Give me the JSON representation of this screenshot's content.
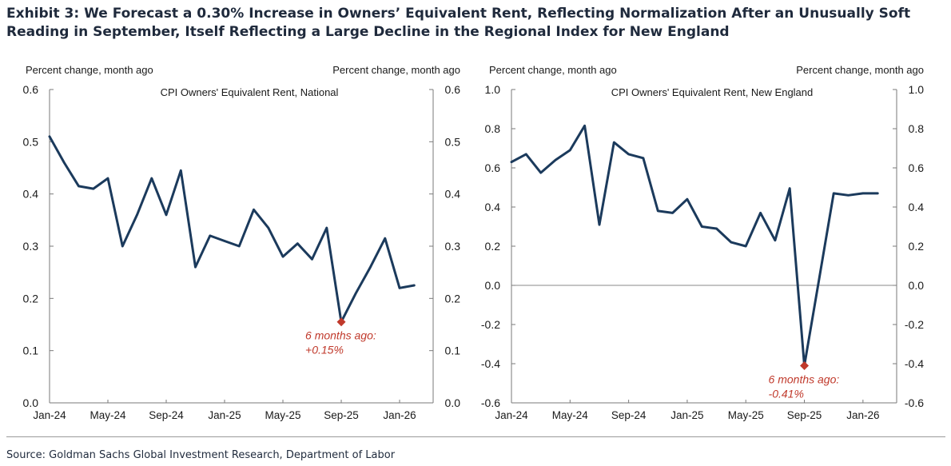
{
  "title": "Exhibit 3: We Forecast a 0.30% Increase in Owners’ Equivalent Rent, Reflecting Normalization After an Unusually Soft Reading in September, Itself Reflecting a Large Decline in the Regional Index for New England",
  "source": "Source: Goldman Sachs Global Investment Research, Department of Labor",
  "colors": {
    "line": "#1b3a5c",
    "marker": "#c0392b",
    "annotation": "#c0392b"
  },
  "chart_data": [
    {
      "type": "line",
      "title": "CPI Owners' Equivalent Rent, National",
      "ylabel_left": "Percent change, month ago",
      "ylabel_right": "Percent change, month ago",
      "ylim": [
        0.0,
        0.6
      ],
      "yticks": [
        "0.0",
        "0.1",
        "0.2",
        "0.3",
        "0.4",
        "0.5",
        "0.6"
      ],
      "xlim": [
        0,
        26.3
      ],
      "xticks": [
        {
          "i": 0,
          "label": "Jan-24"
        },
        {
          "i": 4,
          "label": "May-24"
        },
        {
          "i": 8,
          "label": "Sep-24"
        },
        {
          "i": 12,
          "label": "Jan-25"
        },
        {
          "i": 16,
          "label": "May-25"
        },
        {
          "i": 20,
          "label": "Sep-25"
        },
        {
          "i": 24,
          "label": "Jan-26"
        }
      ],
      "series": [
        {
          "name": "CPI Owners' Equivalent Rent, National",
          "x": [
            0,
            1,
            2,
            3,
            4,
            5,
            6,
            7,
            8,
            9,
            10,
            11,
            12,
            13,
            14,
            15,
            16,
            17,
            18,
            19,
            20,
            21,
            22,
            23,
            24,
            25
          ],
          "values": [
            0.51,
            0.46,
            0.415,
            0.41,
            0.43,
            0.3,
            0.36,
            0.43,
            0.36,
            0.445,
            0.26,
            0.32,
            0.31,
            0.3,
            0.37,
            0.335,
            0.28,
            0.305,
            0.275,
            0.335,
            0.155,
            0.21,
            0.26,
            0.315,
            0.22,
            0.225
          ]
        }
      ],
      "highlight": {
        "x": 20,
        "y": 0.155
      },
      "annotation": [
        "6 months ago:",
        "+0.15%"
      ]
    },
    {
      "type": "line",
      "title": "CPI Owners' Equivalent Rent, New England",
      "ylabel_left": "Percent change, month ago",
      "ylabel_right": "Percent change, month ago",
      "ylim": [
        -0.6,
        1.0
      ],
      "yticks": [
        "-0.6",
        "-0.4",
        "-0.2",
        "0.0",
        "0.2",
        "0.4",
        "0.6",
        "0.8",
        "1.0"
      ],
      "xlim": [
        0,
        26.3
      ],
      "xticks": [
        {
          "i": 0,
          "label": "Jan-24"
        },
        {
          "i": 4,
          "label": "May-24"
        },
        {
          "i": 8,
          "label": "Sep-24"
        },
        {
          "i": 12,
          "label": "Jan-25"
        },
        {
          "i": 16,
          "label": "May-25"
        },
        {
          "i": 20,
          "label": "Sep-25"
        },
        {
          "i": 24,
          "label": "Jan-26"
        }
      ],
      "series": [
        {
          "name": "CPI Owners' Equivalent Rent, New England",
          "x": [
            0,
            1,
            2,
            3,
            4,
            5,
            6,
            7,
            8,
            9,
            10,
            11,
            12,
            13,
            14,
            15,
            16,
            17,
            18,
            19,
            20,
            21,
            22,
            23,
            24,
            25
          ],
          "values": [
            0.63,
            0.67,
            0.575,
            0.64,
            0.69,
            0.815,
            0.31,
            0.73,
            0.67,
            0.65,
            0.38,
            0.37,
            0.44,
            0.3,
            0.29,
            0.22,
            0.2,
            0.37,
            0.23,
            0.495,
            -0.41,
            0.03,
            0.47,
            0.46,
            0.47,
            0.47
          ]
        }
      ],
      "highlight": {
        "x": 20,
        "y": -0.41
      },
      "annotation": [
        "6 months ago:",
        "-0.41%"
      ]
    }
  ]
}
